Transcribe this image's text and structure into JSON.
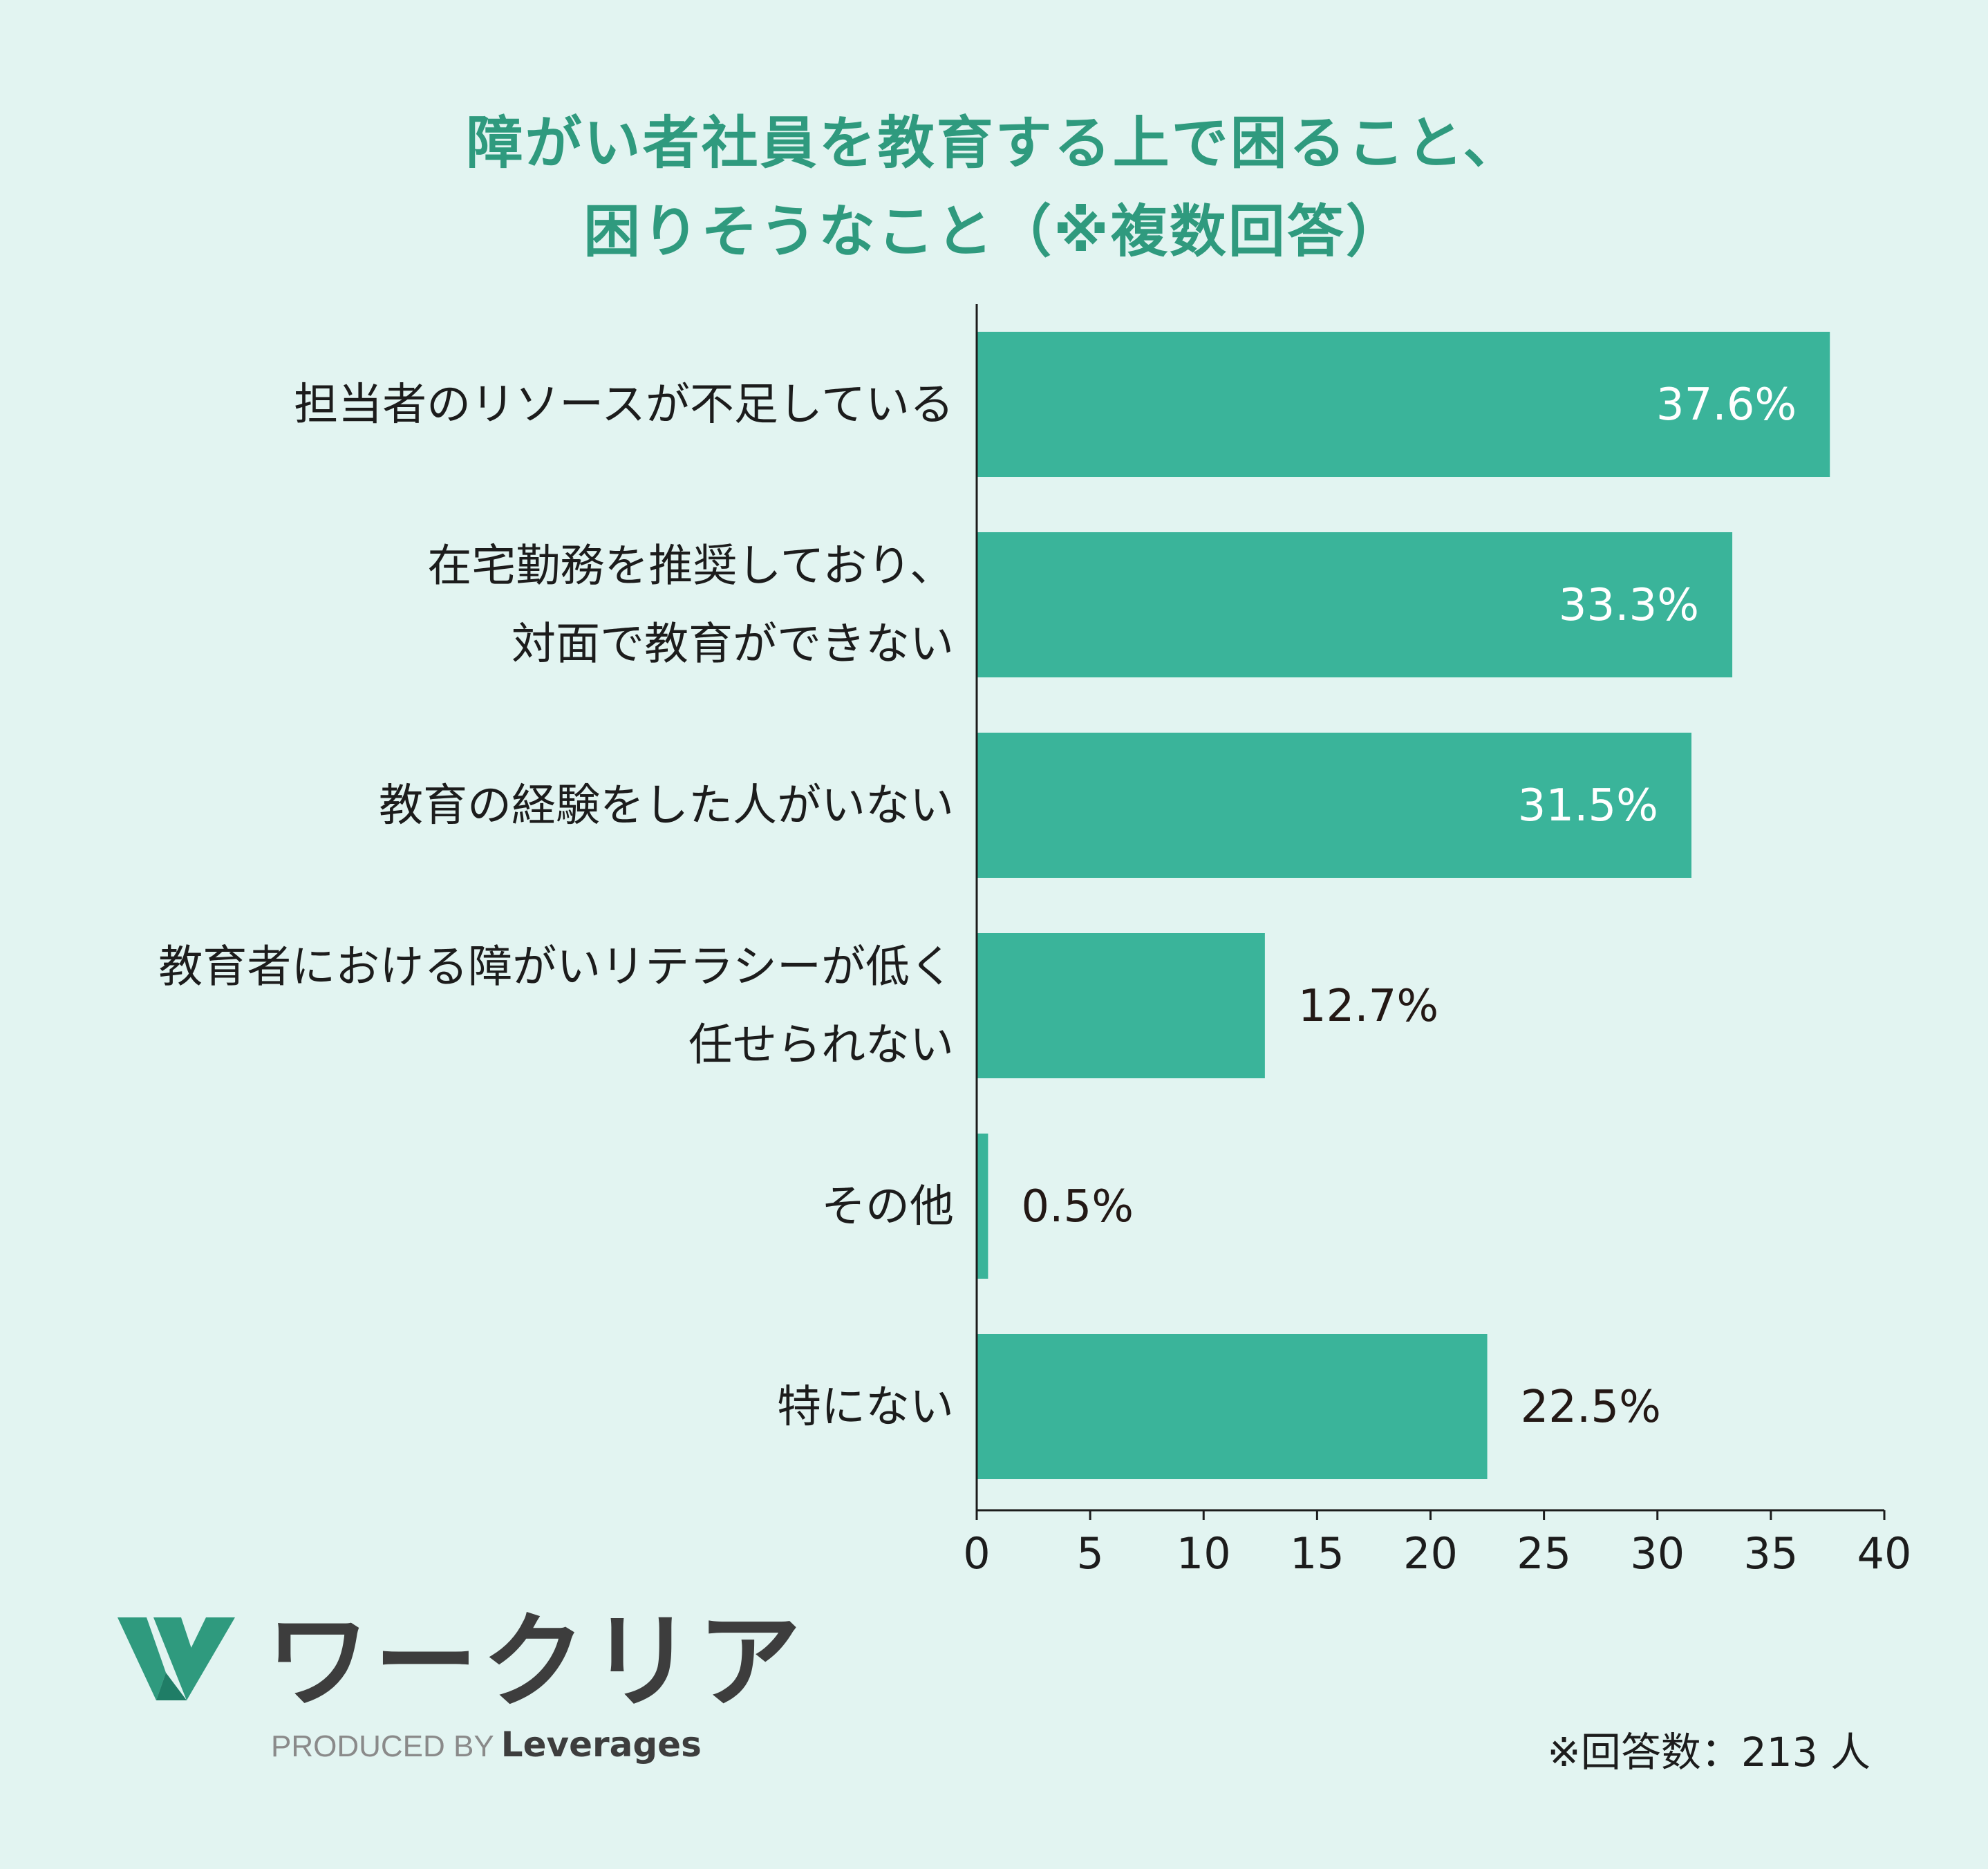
{
  "chart_data": {
    "type": "bar",
    "orientation": "horizontal",
    "title_lines": [
      "障がい者社員を教育する上で困ること、",
      "困りそうなこと（※複数回答）"
    ],
    "categories": [
      [
        "担当者のリソースが不足している"
      ],
      [
        "在宅勤務を推奨しており、",
        "対面で教育ができない"
      ],
      [
        "教育の経験をした人がいない"
      ],
      [
        "教育者における障がいリテラシーが低く",
        "任せられない"
      ],
      [
        "その他"
      ],
      [
        "特にない"
      ]
    ],
    "values": [
      37.6,
      33.3,
      31.5,
      12.7,
      0.5,
      22.5
    ],
    "value_labels": [
      "37.6%",
      "33.3%",
      "31.5%",
      "12.7%",
      "0.5%",
      "22.5%"
    ],
    "xlim": [
      0,
      40
    ],
    "xticks": [
      "0",
      "5",
      "10",
      "15",
      "20",
      "25",
      "30",
      "35",
      "40"
    ],
    "grid": false,
    "colors": {
      "bar": "#3ab49a",
      "title": "#2f9a7e",
      "label_inside": "#ffffff",
      "label_outside": "#231815",
      "axis": "#1c1c1c"
    }
  },
  "logo": {
    "name": "ワークリア",
    "produced_by": "PRODUCED BY",
    "brand": "Leverages",
    "mark_color": "#2f9a7e"
  },
  "footnote": "※回答数：213 人"
}
